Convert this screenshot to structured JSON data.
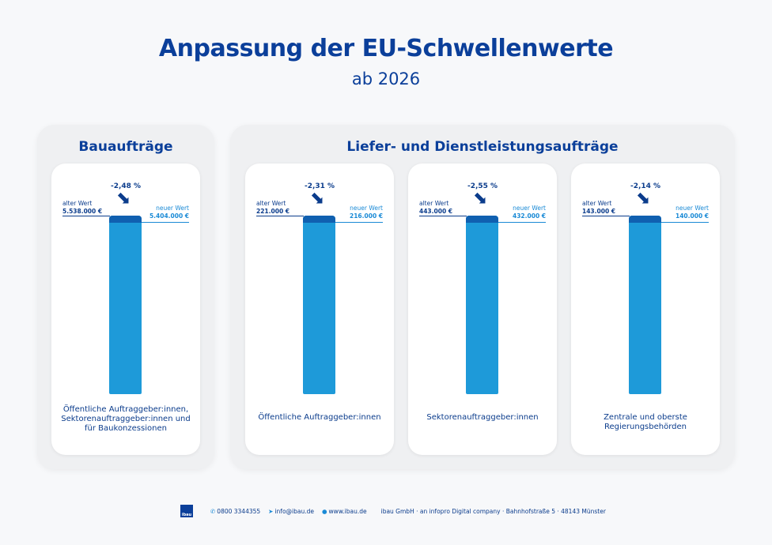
{
  "title": "Anpassung der EU-Schwellenwerte",
  "subtitle": "ab 2026",
  "panels": [
    {
      "title": "Bauaufträge"
    },
    {
      "title": "Liefer- und Dienstleistungsaufträge"
    }
  ],
  "old_label": "alter Wert",
  "new_label": "neuer Wert",
  "cards": [
    {
      "change": "-2,48 %",
      "old_value": "5.538.000 €",
      "new_value": "5.404.000 €",
      "label": "Öffentliche Auftraggeber:innen, Sektorenauftraggeber:innen und für Baukonzessionen"
    },
    {
      "change": "-2,31 %",
      "old_value": "221.000 €",
      "new_value": "216.000 €",
      "label": "Öffentliche Auftraggeber:innen"
    },
    {
      "change": "-2,55 %",
      "old_value": "443.000 €",
      "new_value": "432.000 €",
      "label": "Sektorenauftraggeber:innen"
    },
    {
      "change": "-2,14 %",
      "old_value": "143.000 €",
      "new_value": "140.000 €",
      "label": "Zentrale und oberste Regierungsbehörden"
    }
  ],
  "footer": {
    "logo": "ibau",
    "phone": "0800 3344355",
    "email": "info@ibau.de",
    "web": "www.ibau.de",
    "address": "ibau GmbH · an infopro Digital company · Bahnhofstraße 5 · 48143 Münster"
  },
  "colors": {
    "primary": "#0b3f9a",
    "bar": "#1e9ad9",
    "bar_cap": "#1060b0",
    "new_value": "#1a8ad6"
  }
}
